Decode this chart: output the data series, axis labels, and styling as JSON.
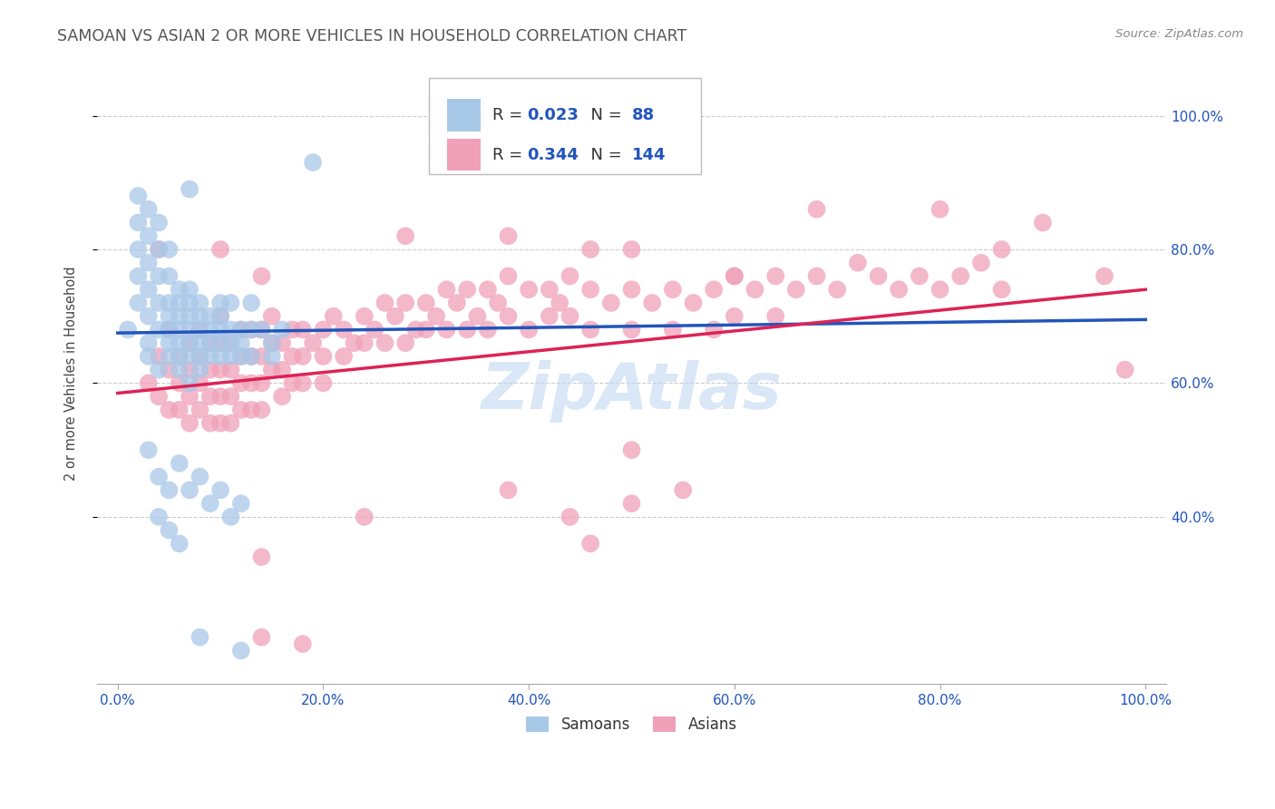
{
  "title": "SAMOAN VS ASIAN 2 OR MORE VEHICLES IN HOUSEHOLD CORRELATION CHART",
  "source": "Source: ZipAtlas.com",
  "ylabel": "2 or more Vehicles in Household",
  "samoans_R": 0.023,
  "samoans_N": 88,
  "asians_R": 0.344,
  "asians_N": 144,
  "samoan_color": "#a8c8e8",
  "asian_color": "#f0a0b8",
  "samoan_line_color": "#2255bb",
  "asian_line_color": "#dd2255",
  "samoan_dash_color": "#99bbdd",
  "asian_dash_color": "#ddaabb",
  "watermark_color": "#c0d8f0",
  "background_color": "#ffffff",
  "grid_color": "#cccccc",
  "title_color": "#555555",
  "axis_tick_color": "#2255bb",
  "ylabel_color": "#444444",
  "xlim": [
    -0.02,
    1.02
  ],
  "ylim": [
    0.15,
    1.08
  ],
  "x_ticks": [
    0.0,
    0.2,
    0.4,
    0.6,
    0.8,
    1.0
  ],
  "y_ticks": [
    0.4,
    0.6,
    0.8,
    1.0
  ],
  "samoan_scatter": [
    [
      0.01,
      0.68
    ],
    [
      0.02,
      0.72
    ],
    [
      0.02,
      0.76
    ],
    [
      0.02,
      0.8
    ],
    [
      0.02,
      0.84
    ],
    [
      0.02,
      0.88
    ],
    [
      0.03,
      0.66
    ],
    [
      0.03,
      0.7
    ],
    [
      0.03,
      0.74
    ],
    [
      0.03,
      0.78
    ],
    [
      0.03,
      0.82
    ],
    [
      0.03,
      0.86
    ],
    [
      0.03,
      0.64
    ],
    [
      0.04,
      0.68
    ],
    [
      0.04,
      0.72
    ],
    [
      0.04,
      0.76
    ],
    [
      0.04,
      0.8
    ],
    [
      0.04,
      0.84
    ],
    [
      0.04,
      0.62
    ],
    [
      0.05,
      0.68
    ],
    [
      0.05,
      0.72
    ],
    [
      0.05,
      0.76
    ],
    [
      0.05,
      0.66
    ],
    [
      0.05,
      0.7
    ],
    [
      0.05,
      0.64
    ],
    [
      0.05,
      0.8
    ],
    [
      0.06,
      0.68
    ],
    [
      0.06,
      0.72
    ],
    [
      0.06,
      0.66
    ],
    [
      0.06,
      0.7
    ],
    [
      0.06,
      0.64
    ],
    [
      0.06,
      0.74
    ],
    [
      0.06,
      0.62
    ],
    [
      0.07,
      0.68
    ],
    [
      0.07,
      0.72
    ],
    [
      0.07,
      0.66
    ],
    [
      0.07,
      0.7
    ],
    [
      0.07,
      0.64
    ],
    [
      0.07,
      0.6
    ],
    [
      0.07,
      0.74
    ],
    [
      0.08,
      0.68
    ],
    [
      0.08,
      0.66
    ],
    [
      0.08,
      0.7
    ],
    [
      0.08,
      0.64
    ],
    [
      0.08,
      0.62
    ],
    [
      0.08,
      0.72
    ],
    [
      0.09,
      0.68
    ],
    [
      0.09,
      0.66
    ],
    [
      0.09,
      0.7
    ],
    [
      0.09,
      0.64
    ],
    [
      0.1,
      0.68
    ],
    [
      0.1,
      0.66
    ],
    [
      0.1,
      0.7
    ],
    [
      0.1,
      0.72
    ],
    [
      0.1,
      0.64
    ],
    [
      0.11,
      0.68
    ],
    [
      0.11,
      0.66
    ],
    [
      0.11,
      0.64
    ],
    [
      0.11,
      0.72
    ],
    [
      0.12,
      0.68
    ],
    [
      0.12,
      0.66
    ],
    [
      0.12,
      0.64
    ],
    [
      0.13,
      0.68
    ],
    [
      0.13,
      0.72
    ],
    [
      0.13,
      0.64
    ],
    [
      0.14,
      0.68
    ],
    [
      0.15,
      0.66
    ],
    [
      0.15,
      0.64
    ],
    [
      0.16,
      0.68
    ],
    [
      0.03,
      0.5
    ],
    [
      0.04,
      0.46
    ],
    [
      0.05,
      0.44
    ],
    [
      0.06,
      0.48
    ],
    [
      0.07,
      0.44
    ],
    [
      0.08,
      0.46
    ],
    [
      0.09,
      0.42
    ],
    [
      0.1,
      0.44
    ],
    [
      0.11,
      0.4
    ],
    [
      0.12,
      0.42
    ],
    [
      0.04,
      0.4
    ],
    [
      0.05,
      0.38
    ],
    [
      0.06,
      0.36
    ],
    [
      0.08,
      0.22
    ],
    [
      0.12,
      0.2
    ],
    [
      0.19,
      0.93
    ],
    [
      0.07,
      0.89
    ]
  ],
  "asian_scatter": [
    [
      0.03,
      0.6
    ],
    [
      0.04,
      0.58
    ],
    [
      0.04,
      0.64
    ],
    [
      0.05,
      0.62
    ],
    [
      0.05,
      0.56
    ],
    [
      0.05,
      0.68
    ],
    [
      0.06,
      0.6
    ],
    [
      0.06,
      0.64
    ],
    [
      0.06,
      0.56
    ],
    [
      0.07,
      0.62
    ],
    [
      0.07,
      0.58
    ],
    [
      0.07,
      0.66
    ],
    [
      0.07,
      0.54
    ],
    [
      0.08,
      0.6
    ],
    [
      0.08,
      0.64
    ],
    [
      0.08,
      0.56
    ],
    [
      0.08,
      0.68
    ],
    [
      0.09,
      0.62
    ],
    [
      0.09,
      0.58
    ],
    [
      0.09,
      0.66
    ],
    [
      0.09,
      0.54
    ],
    [
      0.1,
      0.62
    ],
    [
      0.1,
      0.58
    ],
    [
      0.1,
      0.66
    ],
    [
      0.1,
      0.54
    ],
    [
      0.1,
      0.7
    ],
    [
      0.11,
      0.62
    ],
    [
      0.11,
      0.58
    ],
    [
      0.11,
      0.66
    ],
    [
      0.11,
      0.54
    ],
    [
      0.12,
      0.64
    ],
    [
      0.12,
      0.6
    ],
    [
      0.12,
      0.68
    ],
    [
      0.12,
      0.56
    ],
    [
      0.13,
      0.64
    ],
    [
      0.13,
      0.6
    ],
    [
      0.13,
      0.68
    ],
    [
      0.13,
      0.56
    ],
    [
      0.14,
      0.64
    ],
    [
      0.14,
      0.6
    ],
    [
      0.14,
      0.68
    ],
    [
      0.14,
      0.56
    ],
    [
      0.15,
      0.66
    ],
    [
      0.15,
      0.62
    ],
    [
      0.15,
      0.7
    ],
    [
      0.16,
      0.66
    ],
    [
      0.16,
      0.62
    ],
    [
      0.16,
      0.58
    ],
    [
      0.17,
      0.68
    ],
    [
      0.17,
      0.64
    ],
    [
      0.17,
      0.6
    ],
    [
      0.18,
      0.68
    ],
    [
      0.18,
      0.64
    ],
    [
      0.18,
      0.6
    ],
    [
      0.19,
      0.66
    ],
    [
      0.2,
      0.68
    ],
    [
      0.2,
      0.64
    ],
    [
      0.2,
      0.6
    ],
    [
      0.21,
      0.7
    ],
    [
      0.22,
      0.68
    ],
    [
      0.22,
      0.64
    ],
    [
      0.23,
      0.66
    ],
    [
      0.24,
      0.7
    ],
    [
      0.24,
      0.66
    ],
    [
      0.25,
      0.68
    ],
    [
      0.26,
      0.72
    ],
    [
      0.26,
      0.66
    ],
    [
      0.27,
      0.7
    ],
    [
      0.28,
      0.72
    ],
    [
      0.28,
      0.66
    ],
    [
      0.29,
      0.68
    ],
    [
      0.3,
      0.72
    ],
    [
      0.3,
      0.68
    ],
    [
      0.31,
      0.7
    ],
    [
      0.32,
      0.74
    ],
    [
      0.32,
      0.68
    ],
    [
      0.33,
      0.72
    ],
    [
      0.34,
      0.74
    ],
    [
      0.34,
      0.68
    ],
    [
      0.35,
      0.7
    ],
    [
      0.36,
      0.74
    ],
    [
      0.36,
      0.68
    ],
    [
      0.37,
      0.72
    ],
    [
      0.38,
      0.76
    ],
    [
      0.38,
      0.7
    ],
    [
      0.4,
      0.74
    ],
    [
      0.4,
      0.68
    ],
    [
      0.42,
      0.74
    ],
    [
      0.42,
      0.7
    ],
    [
      0.43,
      0.72
    ],
    [
      0.44,
      0.76
    ],
    [
      0.44,
      0.7
    ],
    [
      0.46,
      0.74
    ],
    [
      0.46,
      0.68
    ],
    [
      0.48,
      0.72
    ],
    [
      0.5,
      0.74
    ],
    [
      0.5,
      0.68
    ],
    [
      0.52,
      0.72
    ],
    [
      0.54,
      0.74
    ],
    [
      0.54,
      0.68
    ],
    [
      0.56,
      0.72
    ],
    [
      0.58,
      0.74
    ],
    [
      0.58,
      0.68
    ],
    [
      0.6,
      0.76
    ],
    [
      0.6,
      0.7
    ],
    [
      0.62,
      0.74
    ],
    [
      0.64,
      0.76
    ],
    [
      0.64,
      0.7
    ],
    [
      0.66,
      0.74
    ],
    [
      0.68,
      0.76
    ],
    [
      0.7,
      0.74
    ],
    [
      0.72,
      0.78
    ],
    [
      0.74,
      0.76
    ],
    [
      0.76,
      0.74
    ],
    [
      0.78,
      0.76
    ],
    [
      0.8,
      0.74
    ],
    [
      0.82,
      0.76
    ],
    [
      0.84,
      0.78
    ],
    [
      0.86,
      0.74
    ],
    [
      0.5,
      0.8
    ],
    [
      0.6,
      0.76
    ],
    [
      0.68,
      0.86
    ],
    [
      0.8,
      0.86
    ],
    [
      0.86,
      0.8
    ],
    [
      0.9,
      0.84
    ],
    [
      0.96,
      0.76
    ],
    [
      0.04,
      0.8
    ],
    [
      0.1,
      0.8
    ],
    [
      0.14,
      0.76
    ],
    [
      0.28,
      0.82
    ],
    [
      0.38,
      0.82
    ],
    [
      0.46,
      0.8
    ],
    [
      0.14,
      0.34
    ],
    [
      0.24,
      0.4
    ],
    [
      0.38,
      0.44
    ],
    [
      0.44,
      0.4
    ],
    [
      0.5,
      0.42
    ],
    [
      0.46,
      0.36
    ],
    [
      0.55,
      0.44
    ],
    [
      0.5,
      0.5
    ],
    [
      0.18,
      0.21
    ],
    [
      0.14,
      0.22
    ],
    [
      0.98,
      0.62
    ]
  ]
}
